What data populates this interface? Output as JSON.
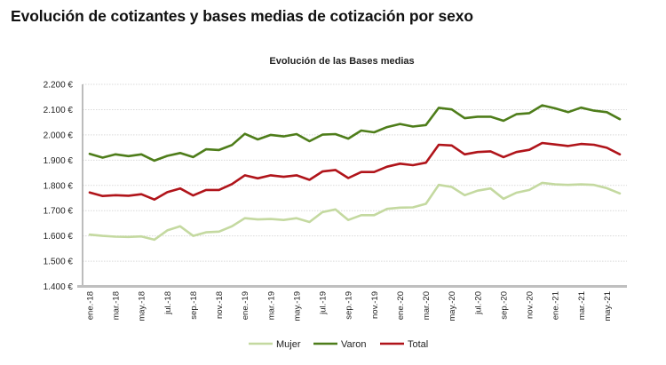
{
  "page": {
    "title": "Evolución de cotizantes y bases medias de cotización por sexo"
  },
  "chart_data": {
    "type": "line",
    "title": "Evolución de las Bases medias",
    "xlabel": "",
    "ylabel": "",
    "ylim": [
      1400,
      2200
    ],
    "y_ticks": [
      1400,
      1500,
      1600,
      1700,
      1800,
      1900,
      2000,
      2100,
      2200
    ],
    "y_tick_labels": [
      "1.400 €",
      "1.500 €",
      "1.600 €",
      "1.700 €",
      "1.800 €",
      "1.900 €",
      "2.000 €",
      "2.100 €",
      "2.200 €"
    ],
    "grid": true,
    "legend_position": "bottom",
    "x": [
      "ene.-18",
      "feb.-18",
      "mar.-18",
      "abr.-18",
      "may.-18",
      "jun.-18",
      "jul.-18",
      "ago.-18",
      "sep.-18",
      "oct.-18",
      "nov.-18",
      "dic.-18",
      "ene.-19",
      "feb.-19",
      "mar.-19",
      "abr.-19",
      "may.-19",
      "jun.-19",
      "jul.-19",
      "ago.-19",
      "sep.-19",
      "oct.-19",
      "nov.-19",
      "dic.-19",
      "ene.-20",
      "feb.-20",
      "mar.-20",
      "abr.-20",
      "may.-20",
      "jun.-20",
      "jul.-20",
      "ago.-20",
      "sep.-20",
      "oct.-20",
      "nov.-20",
      "dic.-20",
      "ene.-21",
      "feb.-21",
      "mar.-21",
      "abr.-21",
      "may.-21",
      "jun.-21"
    ],
    "x_tick_labels": [
      "ene.-18",
      "mar.-18",
      "may.-18",
      "jul.-18",
      "sep.-18",
      "nov.-18",
      "ene.-19",
      "mar.-19",
      "may.-19",
      "jul.-19",
      "sep.-19",
      "nov.-19",
      "ene.-20",
      "mar.-20",
      "may.-20",
      "jul.-20",
      "sep.-20",
      "nov.-20",
      "ene.-21",
      "mar.-21",
      "may.-21"
    ],
    "series": [
      {
        "name": "Mujer",
        "color": "#c4d9a0",
        "values": [
          1605,
          1600,
          1597,
          1596,
          1598,
          1585,
          1622,
          1638,
          1600,
          1614,
          1617,
          1638,
          1670,
          1665,
          1667,
          1663,
          1670,
          1655,
          1694,
          1705,
          1663,
          1682,
          1682,
          1707,
          1712,
          1713,
          1727,
          1802,
          1794,
          1761,
          1779,
          1788,
          1747,
          1771,
          1782,
          1810,
          1804,
          1802,
          1804,
          1802,
          1789,
          1768
        ]
      },
      {
        "name": "Varon",
        "color": "#4e7d1a",
        "values": [
          1925,
          1910,
          1923,
          1916,
          1923,
          1898,
          1917,
          1928,
          1912,
          1943,
          1940,
          1960,
          2004,
          1982,
          2000,
          1994,
          2003,
          1975,
          2001,
          2003,
          1985,
          2017,
          2010,
          2031,
          2043,
          2033,
          2039,
          2107,
          2101,
          2066,
          2072,
          2072,
          2056,
          2082,
          2086,
          2117,
          2105,
          2090,
          2108,
          2096,
          2090,
          2062
        ]
      },
      {
        "name": "Total",
        "color": "#b0141a",
        "values": [
          1772,
          1758,
          1761,
          1759,
          1765,
          1744,
          1773,
          1788,
          1760,
          1782,
          1782,
          1805,
          1840,
          1828,
          1840,
          1834,
          1840,
          1822,
          1855,
          1861,
          1829,
          1853,
          1853,
          1874,
          1886,
          1880,
          1890,
          1961,
          1958,
          1923,
          1932,
          1935,
          1912,
          1932,
          1941,
          1968,
          1962,
          1956,
          1964,
          1961,
          1949,
          1923
        ]
      }
    ]
  }
}
